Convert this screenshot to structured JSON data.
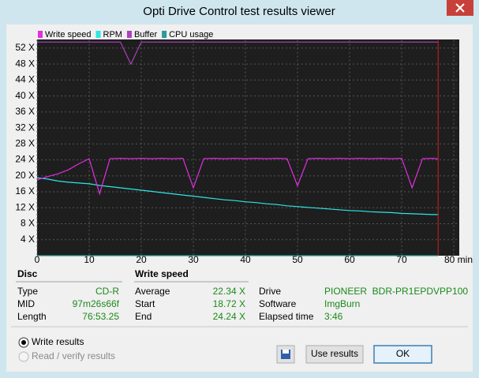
{
  "window": {
    "title": "Opti Drive Control test results viewer"
  },
  "chart_data": {
    "type": "line",
    "x": [
      0,
      2,
      4,
      6,
      8,
      10,
      12,
      14,
      16,
      18,
      20,
      22,
      24,
      26,
      28,
      30,
      32,
      34,
      36,
      38,
      40,
      42,
      44,
      46,
      48,
      50,
      52,
      54,
      56,
      58,
      60,
      62,
      64,
      66,
      68,
      70,
      72,
      74,
      76,
      77
    ],
    "series": [
      {
        "name": "Write speed",
        "color": "#e22ee2",
        "values": [
          19.0,
          19.8,
          20.5,
          21.5,
          23.0,
          24.3,
          15.5,
          24.3,
          24.4,
          24.3,
          24.4,
          24.3,
          24.4,
          24.3,
          24.4,
          17.0,
          24.3,
          24.4,
          24.3,
          24.4,
          24.3,
          24.4,
          24.3,
          24.4,
          24.3,
          17.5,
          24.3,
          24.4,
          24.3,
          24.4,
          24.3,
          24.4,
          24.3,
          24.4,
          24.3,
          24.4,
          17.0,
          24.3,
          24.4,
          24.24
        ]
      },
      {
        "name": "RPM",
        "color": "#2ee6e6",
        "values": [
          19.5,
          19.2,
          18.7,
          18.4,
          18.2,
          18.0,
          17.6,
          17.3,
          17.0,
          16.7,
          16.4,
          16.1,
          15.8,
          15.5,
          15.2,
          14.9,
          14.6,
          14.3,
          14.0,
          13.8,
          13.5,
          13.3,
          13.0,
          12.8,
          12.5,
          12.3,
          12.1,
          11.9,
          11.7,
          11.5,
          11.3,
          11.2,
          11.0,
          10.9,
          10.8,
          10.6,
          10.5,
          10.4,
          10.3,
          10.3
        ]
      },
      {
        "name": "Buffer",
        "color": "#b040c0",
        "values": [
          53.5,
          53.5,
          53.5,
          53.5,
          53.5,
          53.5,
          53.5,
          53.5,
          53.5,
          48.0,
          53.5,
          53.5,
          53.5,
          53.5,
          53.5,
          53.5,
          53.5,
          53.5,
          53.5,
          53.5,
          53.5,
          53.5,
          53.5,
          53.5,
          53.5,
          53.5,
          53.5,
          53.5,
          53.5,
          53.5,
          53.5,
          53.5,
          53.5,
          53.5,
          53.5,
          53.5,
          53.5,
          53.5,
          53.5,
          53.5
        ]
      },
      {
        "name": "CPU usage",
        "color": "#2a9a9a",
        "values": [
          0,
          0,
          0,
          0,
          0,
          0,
          0,
          0,
          0,
          0,
          0,
          0,
          0,
          0,
          0,
          0,
          0,
          0,
          0,
          0,
          0,
          0,
          0,
          0,
          0,
          0,
          0,
          0,
          0,
          0,
          0,
          0,
          0,
          0,
          0,
          0,
          0,
          0,
          0,
          0
        ]
      }
    ],
    "xlim": [
      0,
      80
    ],
    "xticks": [
      0,
      10,
      20,
      30,
      40,
      50,
      60,
      70,
      {
        "value": 80,
        "label": "80 min"
      }
    ],
    "ylim": [
      0,
      54
    ],
    "yticks": [
      {
        "value": 4,
        "label": "4 X"
      },
      {
        "value": 8,
        "label": "8 X"
      },
      {
        "value": 12,
        "label": "12 X"
      },
      {
        "value": 16,
        "label": "16 X"
      },
      {
        "value": 20,
        "label": "20 X"
      },
      {
        "value": 24,
        "label": "24 X"
      },
      {
        "value": 28,
        "label": "28 X"
      },
      {
        "value": 32,
        "label": "32 X"
      },
      {
        "value": 36,
        "label": "36 X"
      },
      {
        "value": 40,
        "label": "40 X"
      },
      {
        "value": 44,
        "label": "44 X"
      },
      {
        "value": 48,
        "label": "48 X"
      },
      {
        "value": 52,
        "label": "52 X"
      }
    ],
    "grid": true
  },
  "disc": {
    "title": "Disc",
    "rows": [
      [
        "Type",
        "CD-R"
      ],
      [
        "MID",
        "97m26s66f"
      ],
      [
        "Length",
        "76:53.25"
      ]
    ]
  },
  "write_speed": {
    "title": "Write speed",
    "rows": [
      [
        "Average",
        "22.34 X"
      ],
      [
        "Start",
        "18.72 X"
      ],
      [
        "End",
        "24.24 X"
      ]
    ]
  },
  "drive_info": {
    "rows": [
      [
        "Drive",
        "PIONEER  BDR-PR1EPDVPP100"
      ],
      [
        "Software",
        "ImgBurn"
      ],
      [
        "Elapsed time",
        "3:46"
      ]
    ]
  },
  "options": [
    "Write results",
    "Read / verify results"
  ],
  "buttons": [
    "Use results",
    "OK"
  ]
}
